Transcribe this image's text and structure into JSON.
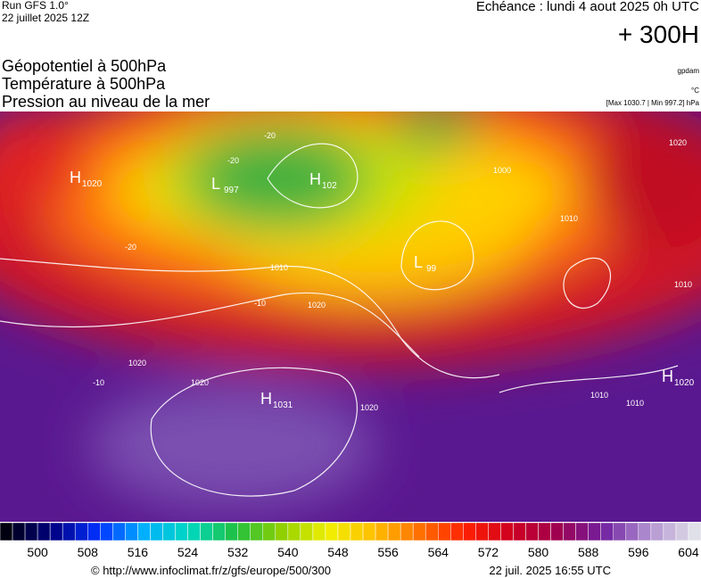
{
  "header": {
    "run": "Run GFS 1.0°",
    "run_date": "22 juillet 2025 12Z",
    "valid": "Echéance : lundi 4 aout 2025 0h UTC",
    "lead": "+ 300H"
  },
  "fields": [
    "Géopotentiel à 500hPa",
    "Température à 500hPa",
    "Pression au niveau de la mer"
  ],
  "units": {
    "geopotential": "gpdam",
    "temperature": "°C",
    "pressure": "[Max 1030.7 | Min 997.2] hPa"
  },
  "centers": [
    {
      "letter": "H",
      "value": "1020"
    },
    {
      "letter": "L",
      "value": "997"
    },
    {
      "letter": "H",
      "value": "102"
    },
    {
      "letter": "L",
      "value": "99"
    },
    {
      "letter": "H",
      "value": "1031"
    },
    {
      "letter": "H",
      "value": "1020"
    }
  ],
  "contour_labels": [
    "-20",
    "-20",
    "-20",
    "-10",
    "-10",
    "1000",
    "1010",
    "1010",
    "1010",
    "1010",
    "1010",
    "1020",
    "1020",
    "1020",
    "1020",
    "1020"
  ],
  "colorbar": {
    "lim": [
      494,
      606
    ],
    "ticks": [
      500,
      508,
      516,
      524,
      532,
      540,
      548,
      556,
      564,
      572,
      580,
      588,
      596,
      604
    ],
    "colors": [
      "#000010",
      "#000080",
      "#0030ff",
      "#00b0ff",
      "#00d8c0",
      "#20c040",
      "#90d000",
      "#f0f000",
      "#ffc000",
      "#ff7000",
      "#ff2000",
      "#d00020",
      "#a00050",
      "#7020a0",
      "#b090d0",
      "#e0e0e8"
    ]
  },
  "footer": {
    "source": "© http://www.infoclimat.fr/z/gfs/europe/500/300",
    "generated": "22 juil. 2025 16:55 UTC"
  }
}
